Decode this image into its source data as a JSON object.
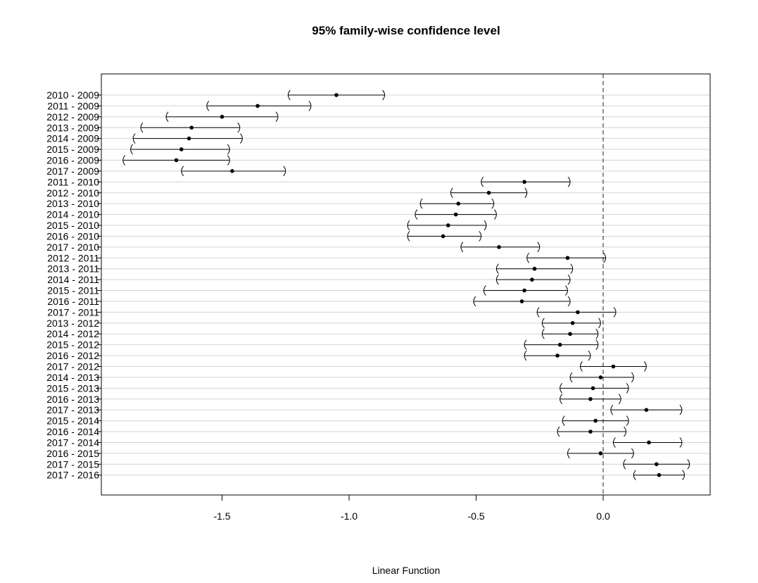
{
  "chart_data": {
    "type": "interval",
    "title": "95% family-wise confidence level",
    "xlabel": "Linear Function",
    "ylabel": "",
    "xlim": [
      -1.95,
      0.42
    ],
    "xticks": [
      -1.5,
      -1.0,
      -0.5,
      0.0
    ],
    "xtick_labels": [
      "-1.5",
      "-1.0",
      "-0.5",
      "0.0"
    ],
    "reference_line": 0.0,
    "grid": "horizontal",
    "comparisons": [
      {
        "label": "2010 - 2009",
        "estimate": -1.05,
        "lwr": -1.24,
        "upr": -0.86
      },
      {
        "label": "2011 - 2009",
        "estimate": -1.36,
        "lwr": -1.56,
        "upr": -1.15
      },
      {
        "label": "2012 - 2009",
        "estimate": -1.5,
        "lwr": -1.72,
        "upr": -1.28
      },
      {
        "label": "2013 - 2009",
        "estimate": -1.62,
        "lwr": -1.82,
        "upr": -1.43
      },
      {
        "label": "2014 - 2009",
        "estimate": -1.63,
        "lwr": -1.85,
        "upr": -1.42
      },
      {
        "label": "2015 - 2009",
        "estimate": -1.66,
        "lwr": -1.86,
        "upr": -1.47
      },
      {
        "label": "2016 - 2009",
        "estimate": -1.68,
        "lwr": -1.89,
        "upr": -1.47
      },
      {
        "label": "2017 - 2009",
        "estimate": -1.46,
        "lwr": -1.66,
        "upr": -1.25
      },
      {
        "label": "2011 - 2010",
        "estimate": -0.31,
        "lwr": -0.48,
        "upr": -0.13
      },
      {
        "label": "2012 - 2010",
        "estimate": -0.45,
        "lwr": -0.6,
        "upr": -0.3
      },
      {
        "label": "2013 - 2010",
        "estimate": -0.57,
        "lwr": -0.72,
        "upr": -0.43
      },
      {
        "label": "2014 - 2010",
        "estimate": -0.58,
        "lwr": -0.74,
        "upr": -0.42
      },
      {
        "label": "2015 - 2010",
        "estimate": -0.61,
        "lwr": -0.77,
        "upr": -0.46
      },
      {
        "label": "2016 - 2010",
        "estimate": -0.63,
        "lwr": -0.77,
        "upr": -0.48
      },
      {
        "label": "2017 - 2010",
        "estimate": -0.41,
        "lwr": -0.56,
        "upr": -0.25
      },
      {
        "label": "2012 - 2011",
        "estimate": -0.14,
        "lwr": -0.3,
        "upr": 0.01
      },
      {
        "label": "2013 - 2011",
        "estimate": -0.27,
        "lwr": -0.42,
        "upr": -0.12
      },
      {
        "label": "2014 - 2011",
        "estimate": -0.28,
        "lwr": -0.42,
        "upr": -0.13
      },
      {
        "label": "2015 - 2011",
        "estimate": -0.31,
        "lwr": -0.47,
        "upr": -0.14
      },
      {
        "label": "2016 - 2011",
        "estimate": -0.32,
        "lwr": -0.51,
        "upr": -0.13
      },
      {
        "label": "2017 - 2011",
        "estimate": -0.1,
        "lwr": -0.26,
        "upr": 0.05
      },
      {
        "label": "2013 - 2012",
        "estimate": -0.12,
        "lwr": -0.24,
        "upr": -0.01
      },
      {
        "label": "2014 - 2012",
        "estimate": -0.13,
        "lwr": -0.24,
        "upr": -0.02
      },
      {
        "label": "2015 - 2012",
        "estimate": -0.17,
        "lwr": -0.31,
        "upr": -0.02
      },
      {
        "label": "2016 - 2012",
        "estimate": -0.18,
        "lwr": -0.31,
        "upr": -0.05
      },
      {
        "label": "2017 - 2012",
        "estimate": 0.04,
        "lwr": -0.09,
        "upr": 0.17
      },
      {
        "label": "2014 - 2013",
        "estimate": -0.01,
        "lwr": -0.13,
        "upr": 0.12
      },
      {
        "label": "2015 - 2013",
        "estimate": -0.04,
        "lwr": -0.17,
        "upr": 0.1
      },
      {
        "label": "2016 - 2013",
        "estimate": -0.05,
        "lwr": -0.17,
        "upr": 0.07
      },
      {
        "label": "2017 - 2013",
        "estimate": 0.17,
        "lwr": 0.03,
        "upr": 0.31
      },
      {
        "label": "2015 - 2014",
        "estimate": -0.03,
        "lwr": -0.16,
        "upr": 0.1
      },
      {
        "label": "2016 - 2014",
        "estimate": -0.05,
        "lwr": -0.18,
        "upr": 0.09
      },
      {
        "label": "2017 - 2014",
        "estimate": 0.18,
        "lwr": 0.04,
        "upr": 0.31
      },
      {
        "label": "2016 - 2015",
        "estimate": -0.01,
        "lwr": -0.14,
        "upr": 0.12
      },
      {
        "label": "2017 - 2015",
        "estimate": 0.21,
        "lwr": 0.08,
        "upr": 0.34
      },
      {
        "label": "2017 - 2016",
        "estimate": 0.22,
        "lwr": 0.12,
        "upr": 0.32
      }
    ]
  }
}
